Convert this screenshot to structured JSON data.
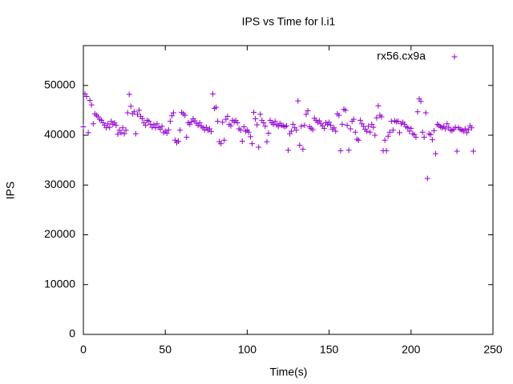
{
  "chart_data": {
    "type": "scatter",
    "title": "IPS vs Time for l.i1",
    "x_label": "Time(s)",
    "y_label": "IPS",
    "xlim": [
      0,
      250
    ],
    "xticks": [
      0,
      50,
      100,
      150,
      200,
      250
    ],
    "ylim": [
      0,
      58000
    ],
    "yticks": [
      0,
      10000,
      20000,
      30000,
      40000,
      50000
    ],
    "legend": "top-right",
    "grid": false,
    "series": [
      {
        "name": "rx56.cx9a",
        "color": "#9400d3",
        "x": [
          0,
          1,
          2,
          3,
          4,
          5,
          6,
          7,
          8,
          9,
          10,
          11,
          12,
          13,
          14,
          15,
          16,
          17,
          18,
          19,
          20,
          21,
          22,
          23,
          24,
          25,
          26,
          27,
          28,
          29,
          30,
          31,
          32,
          33,
          34,
          35,
          36,
          37,
          38,
          39,
          40,
          41,
          42,
          43,
          44,
          45,
          46,
          47,
          48,
          49,
          50,
          51,
          52,
          53,
          54,
          55,
          56,
          57,
          58,
          59,
          60,
          61,
          62,
          63,
          64,
          65,
          66,
          67,
          68,
          69,
          70,
          71,
          72,
          73,
          74,
          75,
          76,
          77,
          78,
          79,
          80,
          81,
          82,
          83,
          84,
          85,
          86,
          87,
          88,
          89,
          90,
          91,
          92,
          93,
          94,
          95,
          96,
          97,
          98,
          99,
          100,
          101,
          102,
          103,
          104,
          105,
          106,
          107,
          108,
          109,
          110,
          111,
          112,
          113,
          114,
          115,
          116,
          117,
          118,
          119,
          120,
          121,
          122,
          123,
          124,
          125,
          126,
          127,
          128,
          129,
          130,
          131,
          132,
          133,
          134,
          135,
          136,
          137,
          138,
          139,
          140,
          141,
          142,
          143,
          144,
          145,
          146,
          147,
          148,
          149,
          150,
          151,
          152,
          153,
          154,
          155,
          156,
          157,
          158,
          159,
          160,
          161,
          162,
          163,
          164,
          165,
          166,
          167,
          168,
          169,
          170,
          171,
          172,
          173,
          174,
          175,
          176,
          177,
          178,
          179,
          180,
          181,
          182,
          183,
          184,
          185,
          186,
          187,
          188,
          189,
          190,
          191,
          192,
          193,
          194,
          195,
          196,
          197,
          198,
          199,
          200,
          201,
          202,
          203,
          204,
          205,
          206,
          207,
          208,
          209,
          210,
          211,
          212,
          213,
          214,
          215,
          216,
          217,
          218,
          219,
          220,
          221,
          222,
          223,
          224,
          225,
          226,
          227,
          228,
          229,
          230,
          231,
          232,
          233,
          234,
          235,
          236,
          237,
          238
        ],
        "values": [
          41700,
          48300,
          47800,
          40500,
          47000,
          46100,
          42300,
          44300,
          44000,
          43700,
          43200,
          43000,
          42500,
          42000,
          41500,
          42300,
          41600,
          42800,
          42200,
          42500,
          42000,
          40200,
          41000,
          40500,
          41500,
          40300,
          41000,
          44500,
          48200,
          45800,
          44300,
          44700,
          40300,
          44200,
          45000,
          43800,
          43300,
          42500,
          42000,
          43000,
          42800,
          42200,
          41600,
          42100,
          41500,
          42300,
          41600,
          41200,
          41800,
          40500,
          40800,
          40400,
          41100,
          42800,
          43900,
          44500,
          39000,
          38500,
          38800,
          41000,
          44600,
          44300,
          44000,
          39600,
          42500,
          42200,
          42700,
          43300,
          42900,
          42400,
          42000,
          42500,
          41800,
          41500,
          41100,
          41600,
          41000,
          41300,
          40700,
          48300,
          45400,
          45600,
          42800,
          38700,
          38300,
          42600,
          39000,
          43200,
          43800,
          42200,
          41900,
          43000,
          42700,
          43000,
          42500,
          41300,
          41000,
          38800,
          41700,
          40800,
          41000,
          40600,
          39700,
          38300,
          44600,
          43300,
          42100,
          37600,
          44200,
          43000,
          42500,
          41800,
          38700,
          40400,
          43000,
          42500,
          42200,
          42800,
          42100,
          41800,
          42400,
          42000,
          41900,
          41700,
          41900,
          37000,
          40300,
          40800,
          42200,
          41500,
          41000,
          46900,
          38000,
          41800,
          37200,
          42000,
          44200,
          44900,
          41700,
          41400,
          41100,
          43400,
          43000,
          42600,
          42900,
          42300,
          41900,
          41400,
          42500,
          42200,
          42600,
          42000,
          41200,
          41500,
          40800,
          44300,
          44000,
          36900,
          42200,
          45200,
          45000,
          42000,
          37000,
          41300,
          42800,
          43200,
          40600,
          39200,
          39000,
          43000,
          42300,
          41800,
          41200,
          40800,
          41800,
          40600,
          42200,
          41600,
          40000,
          43500,
          45900,
          44000,
          43700,
          36900,
          39000,
          36900,
          39800,
          40600,
          42800,
          41000,
          42900,
          42700,
          42800,
          40500,
          42300,
          42600,
          42200,
          41700,
          41500,
          40800,
          41400,
          40300,
          40100,
          39600,
          44700,
          47300,
          46800,
          40600,
          39600,
          44500,
          31300,
          40300,
          40100,
          39100,
          40900,
          36300,
          42200,
          42000,
          41700,
          41500,
          41800,
          41300,
          42300,
          41600,
          41000,
          40900,
          41200,
          41600,
          36800,
          41500,
          41200,
          41000,
          40800,
          41300,
          40500,
          41100,
          41900,
          41500,
          36800
        ]
      }
    ]
  }
}
